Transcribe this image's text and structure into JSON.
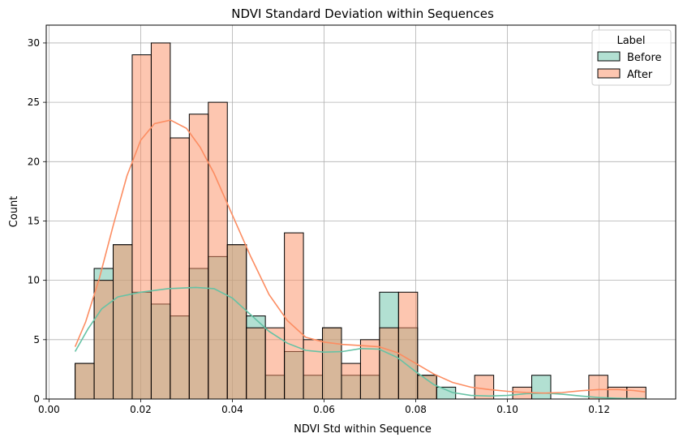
{
  "chart_data": {
    "type": "bar",
    "title": "NDVI Standard Deviation within Sequences",
    "xlabel": "NDVI Std within Sequence",
    "ylabel": "Count",
    "xlim": [
      -0.0006,
      0.1367
    ],
    "ylim": [
      0,
      31.5
    ],
    "x_ticks": [
      0.0,
      0.02,
      0.04,
      0.06,
      0.08,
      0.1,
      0.12
    ],
    "x_tick_labels": [
      "0.00",
      "0.02",
      "0.04",
      "0.06",
      "0.08",
      "0.10",
      "0.12"
    ],
    "y_ticks": [
      0,
      5,
      10,
      15,
      20,
      25,
      30
    ],
    "y_tick_labels": [
      "0",
      "5",
      "10",
      "15",
      "20",
      "25",
      "30"
    ],
    "grid": true,
    "legend": {
      "title": "Label",
      "placement": "top-right"
    },
    "bin_start": 0.0057,
    "bin_width": 0.00415,
    "series": [
      {
        "name": "Before",
        "color": "#66c2a5",
        "values": [
          3,
          11,
          13,
          9,
          8,
          7,
          11,
          12,
          13,
          7,
          2,
          4,
          2,
          6,
          2,
          2,
          9,
          6,
          2,
          1,
          0,
          0,
          0,
          0,
          2,
          0,
          0,
          0,
          0,
          0
        ],
        "kde": [
          [
            0.0057,
            4.0
          ],
          [
            0.0085,
            5.9
          ],
          [
            0.0115,
            7.6
          ],
          [
            0.015,
            8.6
          ],
          [
            0.02,
            9.0
          ],
          [
            0.026,
            9.3
          ],
          [
            0.032,
            9.4
          ],
          [
            0.036,
            9.3
          ],
          [
            0.04,
            8.5
          ],
          [
            0.044,
            7.1
          ],
          [
            0.048,
            5.7
          ],
          [
            0.052,
            4.7
          ],
          [
            0.056,
            4.1
          ],
          [
            0.06,
            3.95
          ],
          [
            0.064,
            4.0
          ],
          [
            0.068,
            4.25
          ],
          [
            0.072,
            4.2
          ],
          [
            0.076,
            3.5
          ],
          [
            0.08,
            2.3
          ],
          [
            0.084,
            1.2
          ],
          [
            0.088,
            0.55
          ],
          [
            0.092,
            0.3
          ],
          [
            0.096,
            0.25
          ],
          [
            0.1,
            0.3
          ],
          [
            0.104,
            0.45
          ],
          [
            0.108,
            0.5
          ],
          [
            0.112,
            0.4
          ],
          [
            0.116,
            0.25
          ],
          [
            0.12,
            0.12
          ],
          [
            0.125,
            0.05
          ],
          [
            0.13,
            0.03
          ]
        ]
      },
      {
        "name": "After",
        "color": "#fc8d62",
        "values": [
          3,
          10,
          13,
          29,
          30,
          22,
          24,
          25,
          13,
          6,
          6,
          14,
          5,
          6,
          3,
          5,
          6,
          9,
          2,
          0,
          0,
          2,
          0,
          1,
          0,
          0,
          0,
          2,
          1,
          1
        ],
        "kde": [
          [
            0.0057,
            4.4
          ],
          [
            0.008,
            6.5
          ],
          [
            0.011,
            10.2
          ],
          [
            0.014,
            14.6
          ],
          [
            0.017,
            18.8
          ],
          [
            0.02,
            21.8
          ],
          [
            0.023,
            23.2
          ],
          [
            0.0265,
            23.5
          ],
          [
            0.03,
            22.8
          ],
          [
            0.033,
            21.2
          ],
          [
            0.036,
            19.0
          ],
          [
            0.04,
            15.5
          ],
          [
            0.044,
            12.0
          ],
          [
            0.048,
            8.8
          ],
          [
            0.052,
            6.6
          ],
          [
            0.056,
            5.2
          ],
          [
            0.06,
            4.8
          ],
          [
            0.064,
            4.6
          ],
          [
            0.068,
            4.5
          ],
          [
            0.072,
            4.4
          ],
          [
            0.076,
            3.9
          ],
          [
            0.08,
            3.0
          ],
          [
            0.084,
            2.1
          ],
          [
            0.088,
            1.4
          ],
          [
            0.092,
            1.0
          ],
          [
            0.096,
            0.8
          ],
          [
            0.1,
            0.65
          ],
          [
            0.104,
            0.55
          ],
          [
            0.108,
            0.5
          ],
          [
            0.112,
            0.55
          ],
          [
            0.116,
            0.7
          ],
          [
            0.12,
            0.8
          ],
          [
            0.124,
            0.8
          ],
          [
            0.1275,
            0.72
          ],
          [
            0.13,
            0.6
          ]
        ]
      }
    ]
  }
}
